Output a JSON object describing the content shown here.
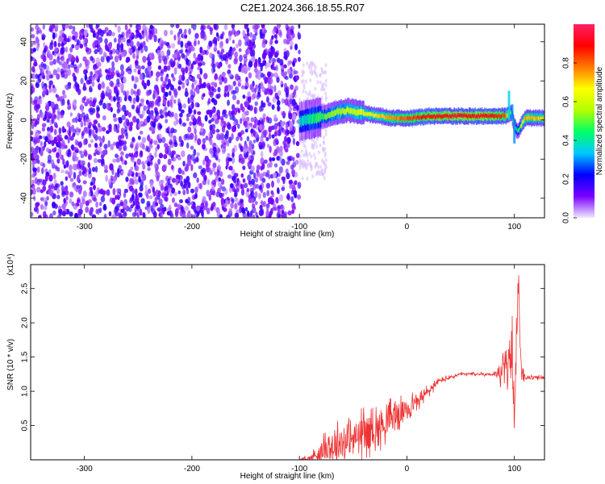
{
  "title": "C2E1.2024.366.18.55.R07",
  "chart_data": [
    {
      "type": "heatmap",
      "xlabel": "Height of straight line (km)",
      "ylabel": "Frequency (Hz)",
      "xlim": [
        -350,
        128
      ],
      "ylim": [
        -50,
        49
      ],
      "xticks": [
        -300,
        -200,
        -100,
        0,
        100
      ],
      "yticks": [
        -40,
        -20,
        0,
        20,
        40
      ],
      "colorbar": {
        "label": "Normalized spectral amplitude",
        "range": [
          0,
          1
        ],
        "ticks": [
          0.0,
          0.2,
          0.4,
          0.6,
          0.8
        ],
        "tick_labels": [
          "0.0",
          "0.2",
          "0.4",
          "0.6",
          "0.8"
        ],
        "colors": [
          "#f0e8ff",
          "#7a00ff",
          "#0000ff",
          "#00c8ff",
          "#00ff66",
          "#b4ff00",
          "#ffff00",
          "#ff7a00",
          "#ff0000",
          "#ff2266"
        ]
      },
      "regions": [
        {
          "name": "noise",
          "x": [
            -350,
            -100
          ],
          "amplitude": [
            0.0,
            0.15
          ]
        },
        {
          "name": "signal",
          "x": [
            -100,
            128
          ],
          "center_frequency_hz": [
            0,
            2
          ],
          "amplitude": [
            0.2,
            1.0
          ]
        }
      ],
      "ridge": {
        "x": [
          -105,
          -95,
          -85,
          -75,
          -65,
          -55,
          -45,
          -35,
          -25,
          -15,
          -5,
          5,
          20,
          40,
          60,
          80,
          92,
          97,
          100,
          103,
          110,
          128
        ],
        "freq": [
          -2,
          0,
          1,
          2,
          4,
          5,
          4,
          3,
          2,
          1,
          1,
          1,
          2,
          2,
          2,
          2,
          2,
          4,
          -3,
          -6,
          1,
          1
        ],
        "amplitude": [
          0.35,
          0.4,
          0.45,
          0.5,
          0.55,
          0.6,
          0.6,
          0.65,
          0.7,
          0.75,
          0.8,
          0.85,
          0.9,
          0.92,
          0.92,
          0.9,
          0.8,
          0.5,
          0.45,
          0.4,
          0.75,
          0.7
        ]
      }
    },
    {
      "type": "line",
      "xlabel": "Height of straight line (km)",
      "ylabel": "SNR (10 * v/v)",
      "scale_note": "(x10⁴)",
      "xlim": [
        -350,
        128
      ],
      "ylim": [
        0,
        2.85
      ],
      "xticks": [
        -300,
        -200,
        -100,
        0,
        100
      ],
      "yticks": [
        0.5,
        1.0,
        1.5,
        2.0,
        2.5
      ],
      "color": "#ee3333",
      "series": [
        {
          "x": [
            -350,
            -300,
            -250,
            -200,
            -150,
            -120,
            -100,
            -90,
            -80,
            -70,
            -60,
            -50,
            -40,
            -30,
            -20,
            -10,
            0,
            10,
            20,
            30,
            40,
            50,
            60,
            70,
            80,
            85,
            90,
            95,
            98,
            100,
            102,
            104,
            106,
            110,
            115,
            120,
            128
          ],
          "y": [
            0.0,
            0.0,
            0.0,
            0.0,
            0.0,
            0.0,
            0.0,
            0.02,
            0.12,
            0.2,
            0.25,
            0.3,
            0.4,
            0.45,
            0.55,
            0.65,
            0.75,
            0.85,
            1.0,
            1.15,
            1.2,
            1.25,
            1.25,
            1.25,
            1.25,
            1.25,
            1.3,
            1.4,
            1.6,
            0.5,
            1.8,
            2.6,
            1.3,
            1.2,
            1.2,
            1.2,
            1.2
          ],
          "noise_amplitude": [
            0,
            0,
            0,
            0,
            0,
            0,
            0,
            0.08,
            0.2,
            0.4,
            0.35,
            0.4,
            0.4,
            0.4,
            0.35,
            0.3,
            0.25,
            0.15,
            0.12,
            0.06,
            0.04,
            0.03,
            0.03,
            0.03,
            0.03,
            0.15,
            0.3,
            0.4,
            0.5,
            0.4,
            0.4,
            0.25,
            0.2,
            0.05,
            0.04,
            0.04,
            0.04
          ]
        }
      ]
    }
  ]
}
